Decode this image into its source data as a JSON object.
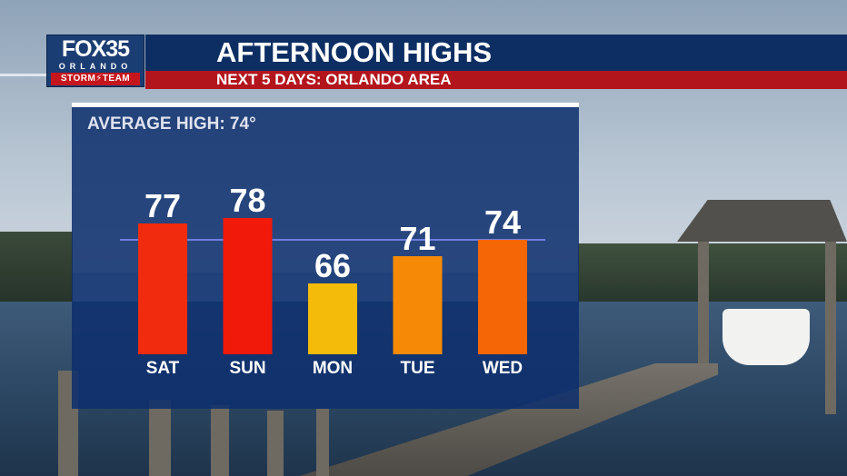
{
  "brand": {
    "station": "FOX35",
    "city": "ORLANDO",
    "team": "STORM⚡TEAM"
  },
  "header": {
    "title": "AFTERNOON HIGHS",
    "subtitle": "NEXT 5 DAYS: ORLANDO AREA"
  },
  "colors": {
    "title_bar": "#0d2e63",
    "subtitle_bar": "#b3151c",
    "panel": "#0d2e6e",
    "average_line": "#6f7fe0"
  },
  "chart_data": {
    "type": "bar",
    "title": "AVERAGE HIGH: 74°",
    "categories": [
      "SAT",
      "SUN",
      "MON",
      "TUE",
      "WED"
    ],
    "values": [
      77,
      78,
      66,
      71,
      74
    ],
    "value_labels": [
      "77",
      "78",
      "66",
      "71",
      "74"
    ],
    "bar_colors": [
      "#f12b0e",
      "#f0190a",
      "#f5bb0a",
      "#f68a06",
      "#f56607"
    ],
    "average_line": 74,
    "baseline_min": 53,
    "ylim": [
      53,
      80
    ],
    "grid": false,
    "legend": "none"
  }
}
